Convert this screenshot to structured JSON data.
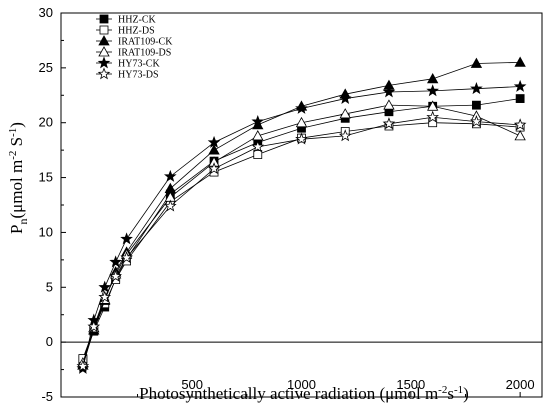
{
  "chart_data": {
    "type": "line",
    "xlabel_text": "Photosynthetically active radiation",
    "xlabel_unit": "(μmol m⁻²s⁻¹)",
    "ylabel_text": "Pn(μmol m⁻² S⁻¹)",
    "xlim": [
      -100,
      2100
    ],
    "ylim": [
      -5,
      30
    ],
    "x_ticks": [
      500,
      1000,
      1500,
      2000
    ],
    "y_ticks": [
      -5,
      0,
      5,
      10,
      15,
      20,
      25,
      30
    ],
    "legend_position": "top-left",
    "grid": false,
    "x": [
      0,
      50,
      100,
      150,
      200,
      400,
      600,
      800,
      1000,
      1200,
      1400,
      1600,
      1800,
      2000
    ],
    "series": [
      {
        "name": "HHZ-CK",
        "marker": "square-filled",
        "values": [
          -1.6,
          1.0,
          3.2,
          5.8,
          7.6,
          13.5,
          16.5,
          18.2,
          19.5,
          20.4,
          21.0,
          21.5,
          21.6,
          22.2
        ]
      },
      {
        "name": "HHZ-DS",
        "marker": "square-open",
        "values": [
          -1.5,
          1.2,
          3.5,
          5.7,
          7.4,
          12.8,
          15.5,
          17.1,
          18.6,
          19.2,
          19.7,
          20.0,
          19.9,
          19.6
        ]
      },
      {
        "name": "IRAT109-CK",
        "marker": "triangle-filled",
        "values": [
          -2.1,
          1.1,
          3.8,
          6.4,
          8.2,
          14.0,
          17.5,
          19.8,
          21.5,
          22.6,
          23.4,
          24.0,
          25.4,
          25.5
        ]
      },
      {
        "name": "IRAT109-DS",
        "marker": "triangle-open",
        "values": [
          -1.9,
          1.3,
          3.9,
          6.2,
          8.0,
          13.2,
          16.4,
          18.8,
          20.0,
          20.8,
          21.6,
          21.5,
          20.6,
          18.8
        ]
      },
      {
        "name": "HY73-CK",
        "marker": "star-filled",
        "values": [
          -2.4,
          2.0,
          5.0,
          7.3,
          9.4,
          15.1,
          18.2,
          20.1,
          21.3,
          22.2,
          22.8,
          22.9,
          23.1,
          23.3
        ]
      },
      {
        "name": "HY73-DS",
        "marker": "star-open",
        "values": [
          -2.2,
          1.4,
          4.1,
          6.0,
          7.7,
          12.4,
          15.8,
          17.8,
          18.5,
          18.8,
          19.9,
          20.5,
          20.1,
          19.8
        ]
      }
    ]
  }
}
